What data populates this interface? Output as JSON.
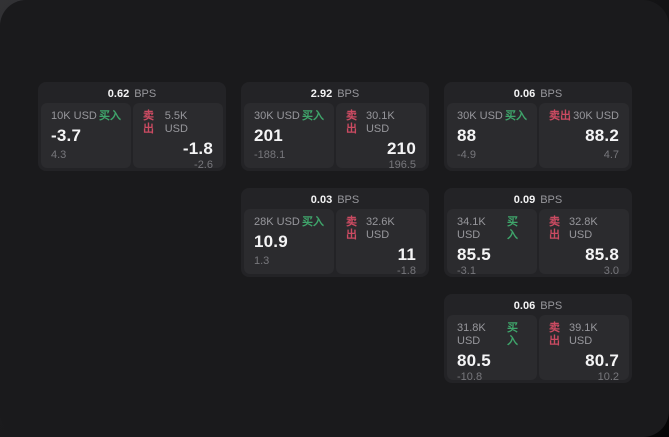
{
  "labels": {
    "bps_unit": "BPS",
    "buy": "买入",
    "sell": "卖出"
  },
  "colors": {
    "background": "#1a1a1c",
    "card": "#232326",
    "panel": "#2b2b2e",
    "buy_green": "#3fa56b",
    "sell_red": "#cc4b62",
    "text_primary": "#f4f4f5",
    "text_secondary": "#97979c",
    "text_muted": "#77777c"
  },
  "cards": [
    {
      "bps": "0.62",
      "buy": {
        "amount": "10K USD",
        "value": "-3.7",
        "sub": "4.3"
      },
      "sell": {
        "amount": "5.5K USD",
        "value": "-1.8",
        "sub": "-2.6"
      }
    },
    {
      "bps": "2.92",
      "buy": {
        "amount": "30K USD",
        "value": "201",
        "sub": "-188.1"
      },
      "sell": {
        "amount": "30.1K USD",
        "value": "210",
        "sub": "196.5"
      }
    },
    {
      "bps": "0.06",
      "buy": {
        "amount": "30K USD",
        "value": "88",
        "sub": "-4.9"
      },
      "sell": {
        "amount": "30K USD",
        "value": "88.2",
        "sub": "4.7"
      }
    },
    {
      "bps": "0.03",
      "buy": {
        "amount": "28K USD",
        "value": "10.9",
        "sub": "1.3"
      },
      "sell": {
        "amount": "32.6K USD",
        "value": "11",
        "sub": "-1.8"
      }
    },
    {
      "bps": "0.09",
      "buy": {
        "amount": "34.1K USD",
        "value": "85.5",
        "sub": "-3.1"
      },
      "sell": {
        "amount": "32.8K USD",
        "value": "85.8",
        "sub": "3.0"
      }
    },
    {
      "bps": "0.06",
      "buy": {
        "amount": "31.8K USD",
        "value": "80.5",
        "sub": "-10.8"
      },
      "sell": {
        "amount": "39.1K USD",
        "value": "80.7",
        "sub": "10.2"
      }
    }
  ]
}
